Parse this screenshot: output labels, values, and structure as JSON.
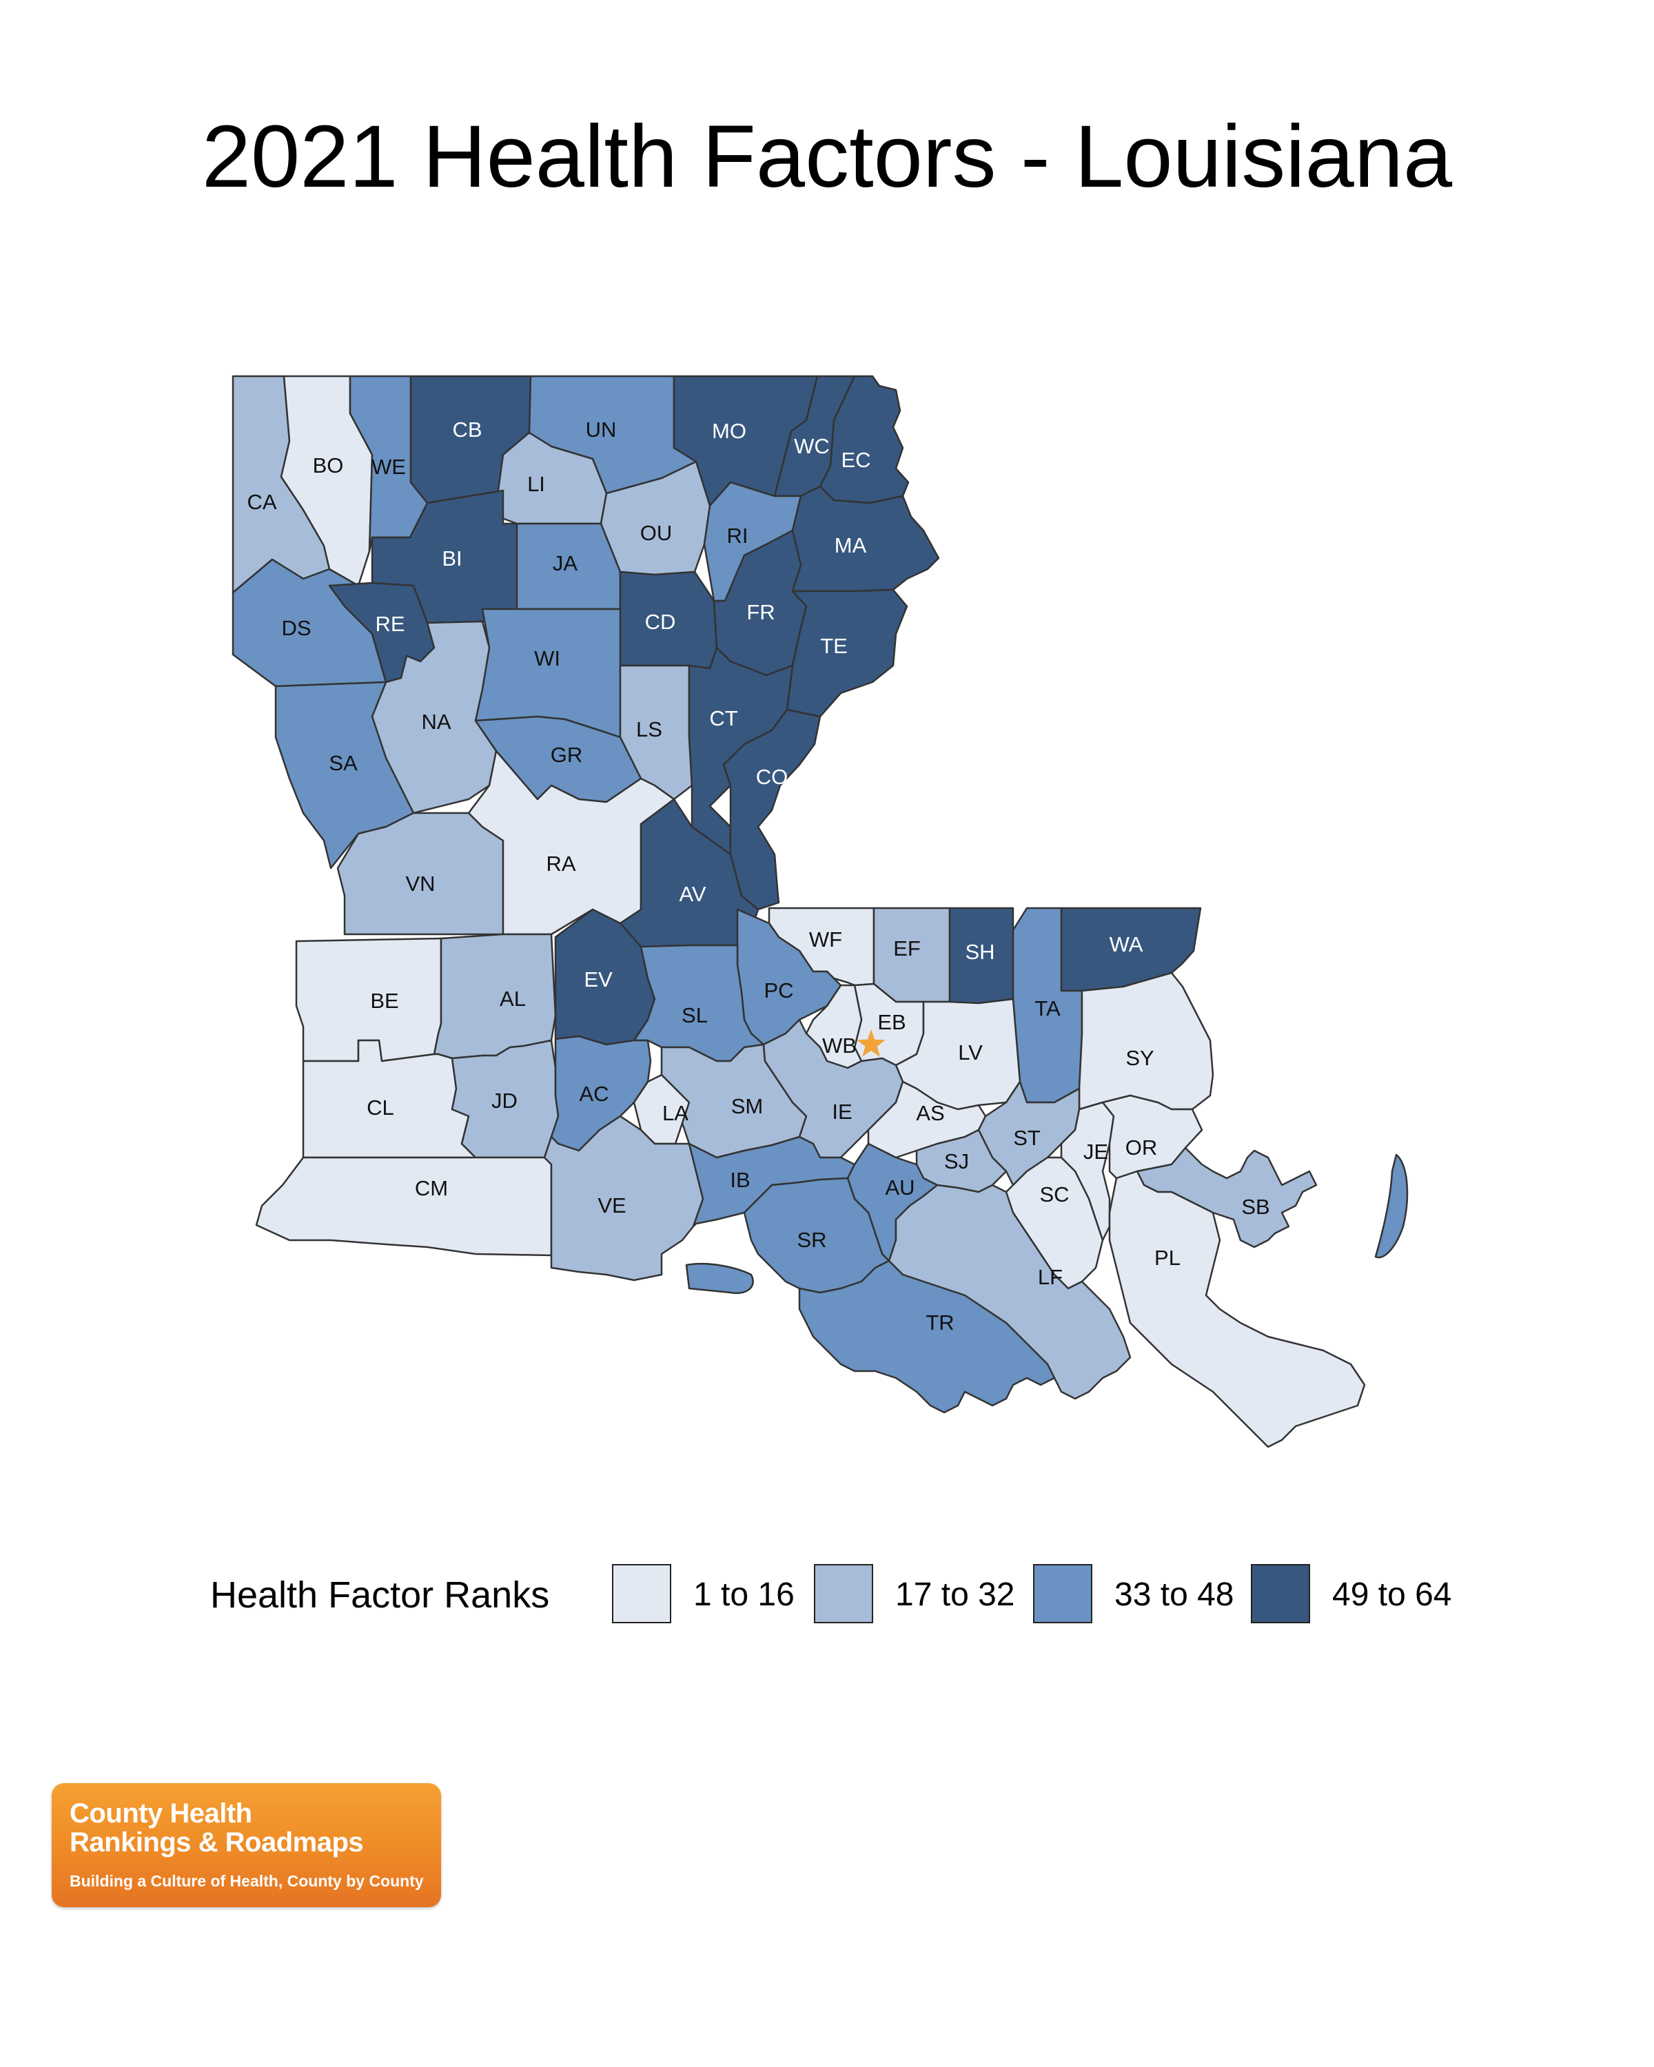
{
  "title": "2021 Health Factors - Louisiana",
  "colors": {
    "rank_1_16": "#e2e9f3",
    "rank_17_32": "#a7bcd8",
    "rank_33_48": "#6a92c2",
    "rank_49_64": "#37577f",
    "capital_star": "#f2a33a"
  },
  "map": {
    "capital_marker": "capital-star-icon",
    "parishes": [
      {
        "abbr": "CA",
        "tier": 2
      },
      {
        "abbr": "BO",
        "tier": 1
      },
      {
        "abbr": "WE",
        "tier": 3
      },
      {
        "abbr": "CB",
        "tier": 4
      },
      {
        "abbr": "UN",
        "tier": 3
      },
      {
        "abbr": "MO",
        "tier": 4
      },
      {
        "abbr": "WC",
        "tier": 4
      },
      {
        "abbr": "EC",
        "tier": 4
      },
      {
        "abbr": "LI",
        "tier": 2
      },
      {
        "abbr": "OU",
        "tier": 2
      },
      {
        "abbr": "RI",
        "tier": 3
      },
      {
        "abbr": "MA",
        "tier": 4
      },
      {
        "abbr": "BI",
        "tier": 4
      },
      {
        "abbr": "JA",
        "tier": 3
      },
      {
        "abbr": "DS",
        "tier": 3
      },
      {
        "abbr": "RE",
        "tier": 4
      },
      {
        "abbr": "CD",
        "tier": 4
      },
      {
        "abbr": "FR",
        "tier": 4
      },
      {
        "abbr": "TE",
        "tier": 4
      },
      {
        "abbr": "WI",
        "tier": 3
      },
      {
        "abbr": "NA",
        "tier": 2
      },
      {
        "abbr": "LS",
        "tier": 2
      },
      {
        "abbr": "CT",
        "tier": 4
      },
      {
        "abbr": "SA",
        "tier": 3
      },
      {
        "abbr": "GR",
        "tier": 3
      },
      {
        "abbr": "CO",
        "tier": 4
      },
      {
        "abbr": "VN",
        "tier": 2
      },
      {
        "abbr": "RA",
        "tier": 1
      },
      {
        "abbr": "AV",
        "tier": 4
      },
      {
        "abbr": "WF",
        "tier": 1
      },
      {
        "abbr": "EF",
        "tier": 2
      },
      {
        "abbr": "SH",
        "tier": 4
      },
      {
        "abbr": "WA",
        "tier": 4
      },
      {
        "abbr": "BE",
        "tier": 1
      },
      {
        "abbr": "AL",
        "tier": 2
      },
      {
        "abbr": "EV",
        "tier": 4
      },
      {
        "abbr": "PC",
        "tier": 3
      },
      {
        "abbr": "SL",
        "tier": 3
      },
      {
        "abbr": "EB",
        "tier": 1
      },
      {
        "abbr": "TA",
        "tier": 3
      },
      {
        "abbr": "WB",
        "tier": 1
      },
      {
        "abbr": "LV",
        "tier": 1
      },
      {
        "abbr": "SY",
        "tier": 1
      },
      {
        "abbr": "CL",
        "tier": 1
      },
      {
        "abbr": "JD",
        "tier": 2
      },
      {
        "abbr": "AC",
        "tier": 3
      },
      {
        "abbr": "LA",
        "tier": 1
      },
      {
        "abbr": "SM",
        "tier": 2
      },
      {
        "abbr": "IE",
        "tier": 2
      },
      {
        "abbr": "AS",
        "tier": 1
      },
      {
        "abbr": "ST",
        "tier": 2
      },
      {
        "abbr": "JE",
        "tier": 1
      },
      {
        "abbr": "OR",
        "tier": 1
      },
      {
        "abbr": "SJ",
        "tier": 2
      },
      {
        "abbr": "CM",
        "tier": 1
      },
      {
        "abbr": "VE",
        "tier": 2
      },
      {
        "abbr": "IB",
        "tier": 3
      },
      {
        "abbr": "AU",
        "tier": 3
      },
      {
        "abbr": "SC",
        "tier": 1
      },
      {
        "abbr": "SB",
        "tier": 2
      },
      {
        "abbr": "SR",
        "tier": 3
      },
      {
        "abbr": "PL",
        "tier": 1
      },
      {
        "abbr": "LF",
        "tier": 2
      },
      {
        "abbr": "TR",
        "tier": 3
      }
    ]
  },
  "legend": {
    "title": "Health Factor Ranks",
    "items": [
      {
        "label": "1 to 16",
        "tier": 1
      },
      {
        "label": "17 to 32",
        "tier": 2
      },
      {
        "label": "33 to 48",
        "tier": 3
      },
      {
        "label": "49 to 64",
        "tier": 4
      }
    ]
  },
  "logo": {
    "line1": "County Health",
    "line2": "Rankings & Roadmaps",
    "tagline": "Building a Culture of Health, County by County"
  }
}
